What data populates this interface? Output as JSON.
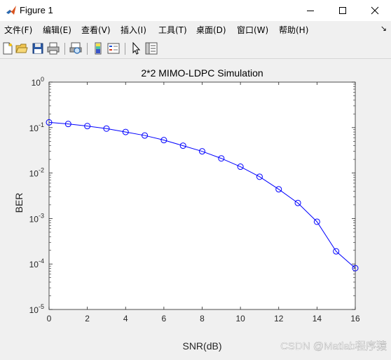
{
  "window": {
    "title": "Figure 1",
    "minimize_glyph": "—",
    "maximize_glyph": "☐",
    "close_glyph": "✕"
  },
  "menu": {
    "items": [
      {
        "label": "文件(F)"
      },
      {
        "label": "编辑(E)"
      },
      {
        "label": "查看(V)"
      },
      {
        "label": "插入(I)"
      },
      {
        "label": "工具(T)"
      },
      {
        "label": "桌面(D)"
      },
      {
        "label": "窗口(W)"
      },
      {
        "label": "帮助(H)"
      }
    ],
    "overflow_glyph": "↘"
  },
  "toolbar": {
    "icons": [
      "new-figure-icon",
      "open-file-icon",
      "save-icon",
      "print-icon",
      "print-preview-icon",
      "colorbar-icon",
      "legend-icon",
      "pointer-icon",
      "property-inspector-icon"
    ]
  },
  "watermark": "CSDN @Matlab程序猿",
  "chart_data": {
    "type": "line",
    "title": "2*2 MIMO-LDPC Simulation",
    "xlabel": "SNR(dB)",
    "ylabel": "BER",
    "xlim": [
      0,
      16
    ],
    "ylim": [
      1e-05,
      1
    ],
    "yscale": "log",
    "xticks": [
      0,
      2,
      4,
      6,
      8,
      10,
      12,
      14,
      16
    ],
    "yticks": [
      {
        "base": "10",
        "exp": "0",
        "value": 1
      },
      {
        "base": "10",
        "exp": "-1",
        "value": 0.1
      },
      {
        "base": "10",
        "exp": "-2",
        "value": 0.01
      },
      {
        "base": "10",
        "exp": "-3",
        "value": 0.001
      },
      {
        "base": "10",
        "exp": "-4",
        "value": 0.0001
      },
      {
        "base": "10",
        "exp": "-5",
        "value": 1e-05
      }
    ],
    "grid": false,
    "series": [
      {
        "color": "#0000ff",
        "marker": "circle",
        "x": [
          0,
          1,
          2,
          3,
          4,
          5,
          6,
          7,
          8,
          9,
          10,
          11,
          12,
          13,
          14,
          15,
          16
        ],
        "y": [
          0.13,
          0.12,
          0.108,
          0.095,
          0.08,
          0.067,
          0.053,
          0.04,
          0.03,
          0.021,
          0.0138,
          0.0083,
          0.0044,
          0.0022,
          0.00085,
          0.00019,
          8.1e-05
        ]
      }
    ]
  }
}
